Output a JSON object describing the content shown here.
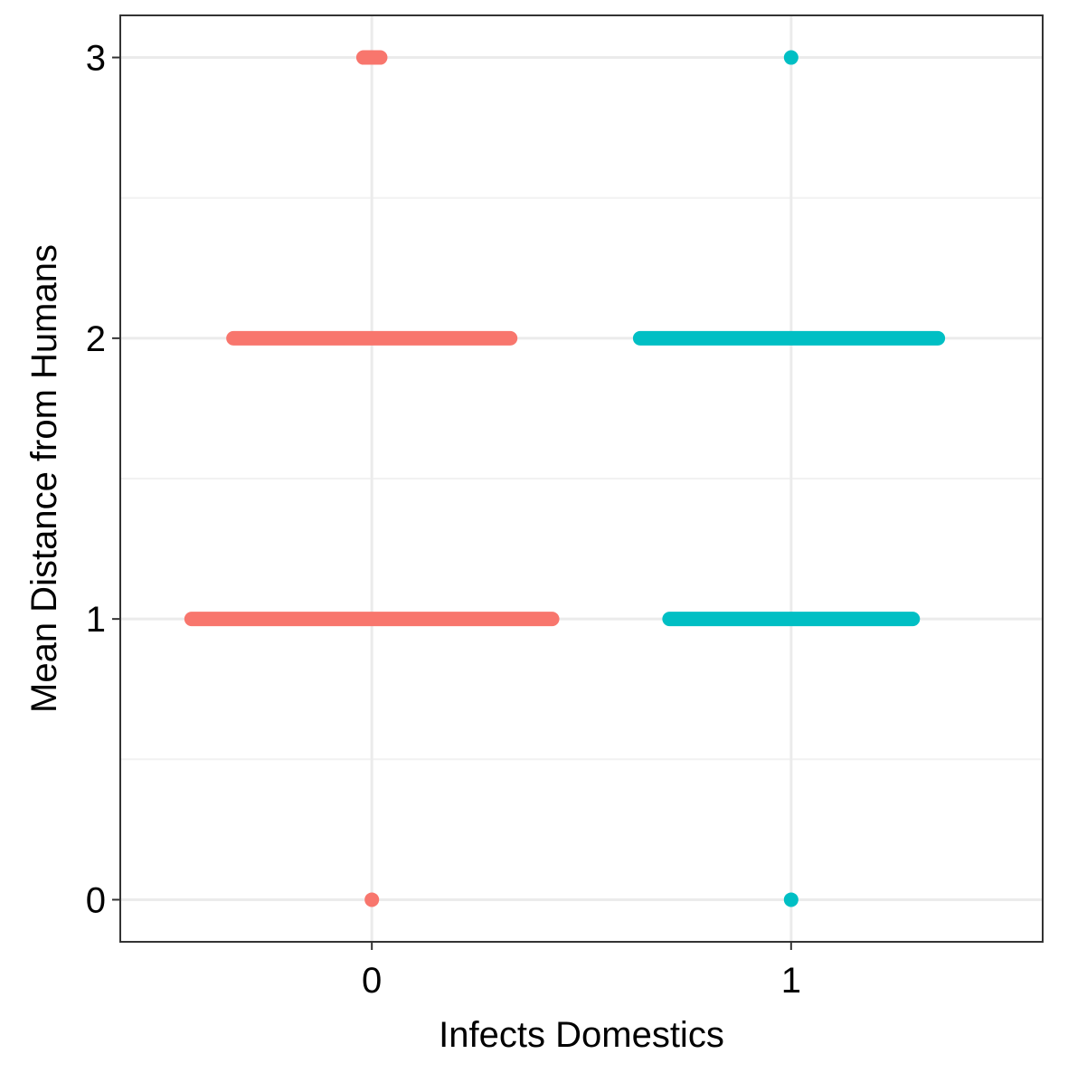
{
  "chart_data": {
    "type": "strip",
    "x_label": "Infects Domestics",
    "y_label": "Mean Distance from Humans",
    "xlim": [
      -0.6,
      1.6
    ],
    "xticks": [
      0,
      1
    ],
    "ylim": [
      -0.15,
      3.15
    ],
    "yticks": [
      0,
      1,
      2,
      3
    ],
    "yminor": [
      0.5,
      1.5,
      2.5
    ],
    "grid": true,
    "series": [
      {
        "color": "#F8766D",
        "values": [
          3,
          2,
          1,
          0
        ],
        "x_min": [
          -0.02,
          -0.33,
          -0.43,
          0
        ],
        "x_max": [
          0.02,
          0.33,
          0.43,
          0
        ]
      },
      {
        "color": "#00BFC4",
        "values": [
          3,
          2,
          1,
          0
        ],
        "x_min": [
          1,
          0.64,
          0.71,
          1
        ],
        "x_max": [
          1,
          1.35,
          1.29,
          1
        ]
      }
    ]
  }
}
